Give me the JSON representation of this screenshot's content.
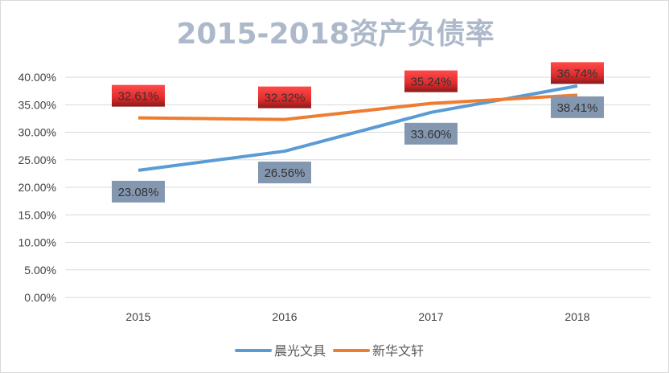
{
  "chart_data": {
    "type": "line",
    "title": "2015-2018资产负债率",
    "categories": [
      "2015",
      "2016",
      "2017",
      "2018"
    ],
    "ylim": [
      0,
      40
    ],
    "yticks": [
      "0.00%",
      "5.00%",
      "10.00%",
      "15.00%",
      "20.00%",
      "25.00%",
      "30.00%",
      "35.00%",
      "40.00%"
    ],
    "grid": true,
    "legend": "bottom",
    "series": [
      {
        "name": "晨光文具",
        "color": "#5b9bd5",
        "label_fill": "#8497b0",
        "label_position": "below",
        "values": [
          23.08,
          26.56,
          33.6,
          38.41
        ],
        "labels": [
          "23.08%",
          "26.56%",
          "33.60%",
          "38.41%"
        ]
      },
      {
        "name": "新华文轩",
        "color": "#ed7d31",
        "label_fill": "#e03a3a",
        "label_position": "above",
        "values": [
          32.61,
          32.32,
          35.24,
          36.74
        ],
        "labels": [
          "32.61%",
          "32.32%",
          "35.24%",
          "36.74%"
        ]
      }
    ]
  }
}
